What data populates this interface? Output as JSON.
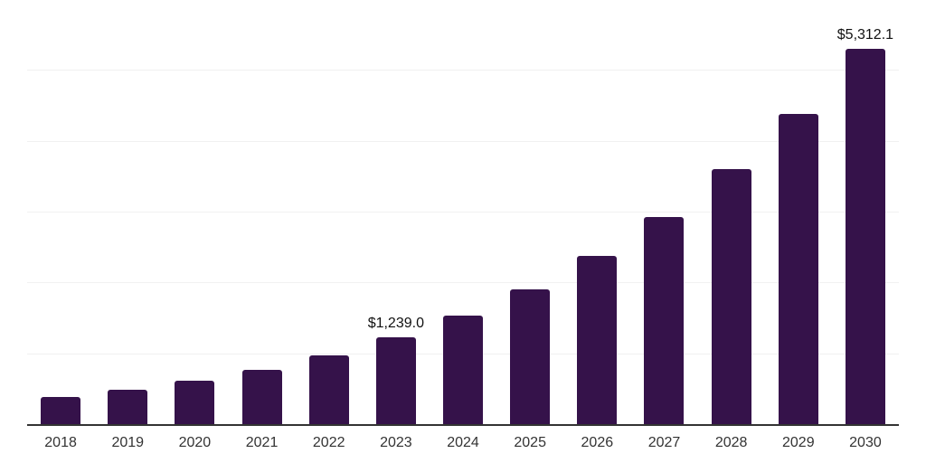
{
  "chart_data": {
    "type": "bar",
    "title": "",
    "xlabel": "",
    "ylabel": "",
    "categories": [
      "2018",
      "2019",
      "2020",
      "2021",
      "2022",
      "2023",
      "2024",
      "2025",
      "2026",
      "2027",
      "2028",
      "2029",
      "2030"
    ],
    "values": [
      395,
      497,
      628,
      778,
      985,
      1239.0,
      1550,
      1920,
      2390,
      2930,
      3610,
      4390,
      5312.1
    ],
    "data_labels": {
      "2023": "$1,239.0",
      "2030": "$5,312.1"
    },
    "ylim": [
      0,
      6000
    ],
    "gridline_interval": 1000,
    "grid": "horizontal",
    "legend_position": "none",
    "y_tick_labels_visible": false,
    "colors": {
      "bar": "#35124A",
      "gridline": "#f1f1f1",
      "axis_line": "#333333",
      "x_tick_label": "#333333",
      "value_label": "#111111",
      "background": "#ffffff"
    }
  }
}
